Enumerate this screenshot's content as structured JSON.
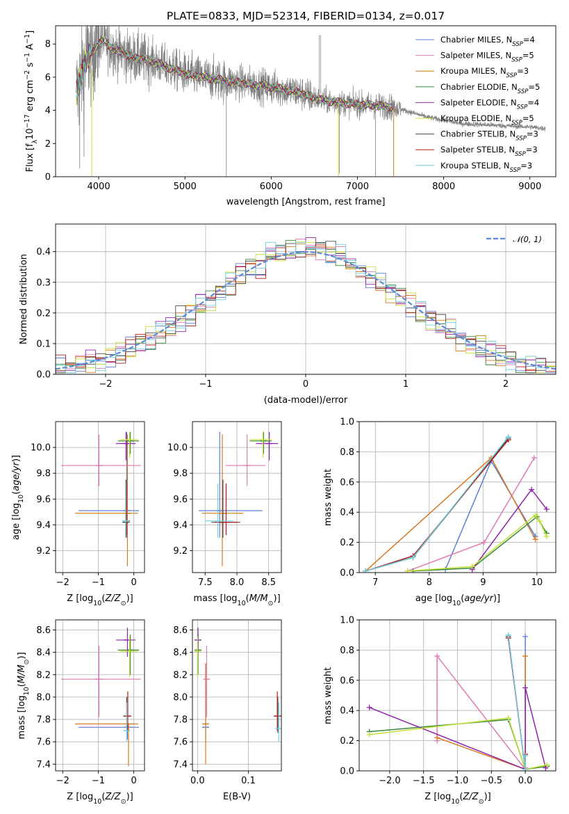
{
  "figure_title": "PLATE=0833, MJD=52314, FIBERID=0134, z=0.017",
  "colors": {
    "Chabrier MILES": "#5b7fd6",
    "Salpeter MILES": "#e07ab4",
    "Kroupa MILES": "#d9781e",
    "Chabrier ELODIE": "#3a8a3a",
    "Salpeter ELODIE": "#8e24aa",
    "Kroupa ELODIE": "#c6e03a",
    "Chabrier STELIB": "#4a4a4a",
    "Salpeter STELIB": "#b01a1a",
    "Kroupa STELIB": "#6ed0e0",
    "observed": "#808080",
    "normal": "#5b8bd6"
  },
  "legend_spectrum": [
    {
      "key": "Chabrier MILES",
      "label": "Chabrier MILES, N",
      "n": "=4"
    },
    {
      "key": "Salpeter MILES",
      "label": "Salpeter MILES, N",
      "n": "=5"
    },
    {
      "key": "Kroupa MILES",
      "label": "Kroupa MILES, N",
      "n": "=3"
    },
    {
      "key": "Chabrier ELODIE",
      "label": "Chabrier ELODIE, N",
      "n": "=5"
    },
    {
      "key": "Salpeter ELODIE",
      "label": "Salpeter ELODIE, N",
      "n": "=4"
    },
    {
      "key": "Kroupa ELODIE",
      "label": "Kroupa ELODIE, N",
      "n": "=5"
    },
    {
      "key": "Chabrier STELIB",
      "label": "Chabrier STELIB, N",
      "n": "=3"
    },
    {
      "key": "Salpeter STELIB",
      "label": "Salpeter STELIB, N",
      "n": "=3"
    },
    {
      "key": "Kroupa STELIB",
      "label": "Kroupa STELIB, N",
      "n": "=3"
    }
  ],
  "legend_ssp_subscript": "SSP",
  "chart_data": [
    {
      "id": "spectrum",
      "type": "line",
      "xlabel": "wavelength [Angstrom, rest frame]",
      "ylabel": "Flux [f_λ10^-17 erg cm^-2 s^-1 A^-1]",
      "xlim": [
        3500,
        9300
      ],
      "ylim": [
        0,
        9.1
      ],
      "xticks": [
        4000,
        5000,
        6000,
        7000,
        8000,
        9000
      ],
      "yticks": [
        0,
        2,
        4,
        6,
        8
      ],
      "grid": false,
      "legend": "top-right",
      "observed_range": [
        3740,
        9180
      ],
      "continuum": [
        [
          3740,
          5.0
        ],
        [
          3850,
          7.0
        ],
        [
          3950,
          7.8
        ],
        [
          4050,
          8.2
        ],
        [
          4200,
          7.6
        ],
        [
          4400,
          7.2
        ],
        [
          4600,
          7.0
        ],
        [
          4800,
          6.6
        ],
        [
          5000,
          6.2
        ],
        [
          5300,
          5.9
        ],
        [
          5600,
          5.7
        ],
        [
          6000,
          5.4
        ],
        [
          6300,
          5.1
        ],
        [
          6600,
          4.6
        ],
        [
          6900,
          4.4
        ],
        [
          7200,
          4.3
        ],
        [
          7420,
          4.2
        ],
        [
          7800,
          3.6
        ],
        [
          8200,
          3.2
        ],
        [
          8600,
          3.1
        ],
        [
          9000,
          3.0
        ],
        [
          9180,
          2.9
        ]
      ],
      "model_end": 7420
    },
    {
      "id": "residuals",
      "type": "histogram",
      "xlabel": "(data-model)/error",
      "ylabel": "Normed distribution",
      "xlim": [
        -2.5,
        2.5
      ],
      "ylim": [
        0,
        0.49
      ],
      "xticks": [
        -2,
        -1,
        0,
        1,
        2
      ],
      "yticks": [
        0.0,
        0.1,
        0.2,
        0.3,
        0.4
      ],
      "grid": true,
      "legend": "top-right",
      "legend_label": "𝒩(0, 1)",
      "bin_width": 0.1
    },
    {
      "id": "age_vs_Z",
      "type": "errorbar",
      "xlabel": "Z [log10(Z/Z⊙)]",
      "ylabel": "age [log10(age/yr)]",
      "xlim": [
        -2.2,
        0.3
      ],
      "ylim": [
        9.03,
        10.2
      ],
      "xticks": [
        -2,
        -1,
        0
      ],
      "yticks": [
        9.2,
        9.4,
        9.6,
        9.8,
        10.0
      ],
      "grid": true,
      "points": [
        {
          "key": "Chabrier MILES",
          "x": -0.2,
          "y": 9.51,
          "xe": [
            -1.55,
            0.15
          ],
          "ye": [
            9.3,
            10.12
          ]
        },
        {
          "key": "Salpeter MILES",
          "x": -0.98,
          "y": 9.86,
          "xe": [
            -2.05,
            0.2
          ],
          "ye": [
            9.7,
            10.1
          ]
        },
        {
          "key": "Kroupa MILES",
          "x": -0.18,
          "y": 9.49,
          "xe": [
            -1.65,
            0.12
          ],
          "ye": [
            9.08,
            10.1
          ]
        },
        {
          "key": "Chabrier ELODIE",
          "x": -0.1,
          "y": 10.05,
          "xe": [
            -0.45,
            0.15
          ],
          "ye": [
            9.95,
            10.12
          ]
        },
        {
          "key": "Salpeter ELODIE",
          "x": -0.22,
          "y": 10.03,
          "xe": [
            -0.5,
            0.05
          ],
          "ye": [
            9.9,
            10.12
          ]
        },
        {
          "key": "Kroupa ELODIE",
          "x": -0.12,
          "y": 10.06,
          "xe": [
            -0.4,
            0.12
          ],
          "ye": [
            9.92,
            10.12
          ]
        },
        {
          "key": "Chabrier STELIB",
          "x": -0.22,
          "y": 9.42,
          "xe": [
            -0.3,
            -0.15
          ],
          "ye": [
            9.3,
            9.75
          ]
        },
        {
          "key": "Salpeter STELIB",
          "x": -0.21,
          "y": 9.43,
          "xe": [
            -0.28,
            -0.15
          ],
          "ye": [
            9.32,
            9.72
          ]
        },
        {
          "key": "Kroupa STELIB",
          "x": -0.23,
          "y": 9.43,
          "xe": [
            -0.3,
            -0.16
          ],
          "ye": [
            9.3,
            9.72
          ]
        }
      ]
    },
    {
      "id": "age_vs_mass",
      "type": "errorbar",
      "xlabel": "mass [log10(M/M⊙)]",
      "ylabel": "",
      "xlim": [
        7.3,
        8.7
      ],
      "ylim": [
        9.03,
        10.2
      ],
      "xticks": [
        7.5,
        8.0,
        8.5
      ],
      "yticks": [
        9.2,
        9.4,
        9.6,
        9.8,
        10.0
      ],
      "grid": true,
      "points": [
        {
          "key": "Chabrier MILES",
          "x": 7.73,
          "y": 9.51,
          "xe": [
            7.4,
            8.4
          ],
          "ye": [
            9.3,
            10.12
          ]
        },
        {
          "key": "Salpeter MILES",
          "x": 8.16,
          "y": 9.86,
          "xe": [
            7.82,
            8.45
          ],
          "ye": [
            9.7,
            10.1
          ]
        },
        {
          "key": "Kroupa MILES",
          "x": 7.77,
          "y": 9.49,
          "xe": [
            7.45,
            8.1
          ],
          "ye": [
            9.08,
            10.1
          ]
        },
        {
          "key": "Chabrier ELODIE",
          "x": 8.42,
          "y": 10.05,
          "xe": [
            8.2,
            8.55
          ],
          "ye": [
            9.95,
            10.12
          ]
        },
        {
          "key": "Salpeter ELODIE",
          "x": 8.51,
          "y": 10.03,
          "xe": [
            8.3,
            8.65
          ],
          "ye": [
            9.9,
            10.12
          ]
        },
        {
          "key": "Kroupa ELODIE",
          "x": 8.41,
          "y": 10.06,
          "xe": [
            8.2,
            8.55
          ],
          "ye": [
            9.92,
            10.12
          ]
        },
        {
          "key": "Chabrier STELIB",
          "x": 7.78,
          "y": 9.42,
          "xe": [
            7.6,
            8.0
          ],
          "ye": [
            9.3,
            9.75
          ]
        },
        {
          "key": "Salpeter STELIB",
          "x": 7.83,
          "y": 9.42,
          "xe": [
            7.65,
            8.05
          ],
          "ye": [
            9.32,
            9.72
          ]
        },
        {
          "key": "Kroupa STELIB",
          "x": 7.7,
          "y": 9.43,
          "xe": [
            7.5,
            7.95
          ],
          "ye": [
            9.3,
            9.72
          ]
        }
      ]
    },
    {
      "id": "weight_vs_age",
      "type": "line",
      "xlabel": "age [log10(age/yr)]",
      "ylabel": "mass weight",
      "xlim": [
        6.7,
        10.35
      ],
      "ylim": [
        0,
        1.0
      ],
      "xticks": [
        7,
        8,
        9,
        10
      ],
      "yticks": [
        0.0,
        0.2,
        0.4,
        0.6,
        0.8,
        1.0
      ],
      "grid": true,
      "series": [
        {
          "key": "Chabrier MILES",
          "x": [
            7.6,
            8.3,
            9.15,
            9.97
          ],
          "y": [
            0.01,
            0.02,
            0.74,
            0.24
          ]
        },
        {
          "key": "Salpeter MILES",
          "x": [
            7.6,
            9.02,
            9.95
          ],
          "y": [
            0.01,
            0.2,
            0.76
          ]
        },
        {
          "key": "Kroupa MILES",
          "x": [
            6.82,
            9.15,
            9.97
          ],
          "y": [
            0.01,
            0.76,
            0.22
          ]
        },
        {
          "key": "Chabrier ELODIE",
          "x": [
            7.7,
            8.8,
            10.0,
            10.18
          ],
          "y": [
            0.01,
            0.03,
            0.37,
            0.26
          ]
        },
        {
          "key": "Salpeter ELODIE",
          "x": [
            8.8,
            9.9,
            10.18
          ],
          "y": [
            0.02,
            0.55,
            0.42
          ]
        },
        {
          "key": "Kroupa ELODIE",
          "x": [
            7.6,
            8.8,
            9.97,
            10.05,
            10.18
          ],
          "y": [
            0.01,
            0.04,
            0.38,
            0.34,
            0.24
          ]
        },
        {
          "key": "Chabrier STELIB",
          "x": [
            6.82,
            7.7,
            9.47
          ],
          "y": [
            0.01,
            0.1,
            0.89
          ]
        },
        {
          "key": "Salpeter STELIB",
          "x": [
            6.82,
            7.7,
            9.47
          ],
          "y": [
            0.01,
            0.11,
            0.88
          ]
        },
        {
          "key": "Kroupa STELIB",
          "x": [
            6.82,
            7.7,
            9.47
          ],
          "y": [
            0.01,
            0.1,
            0.9
          ]
        }
      ]
    },
    {
      "id": "mass_vs_Z",
      "type": "errorbar",
      "xlabel": "Z [log10(Z/Z⊙)]",
      "ylabel": "mass [log10(M/M⊙)]",
      "xlim": [
        -2.2,
        0.3
      ],
      "ylim": [
        7.34,
        8.69
      ],
      "xticks": [
        -2,
        -1,
        0
      ],
      "yticks": [
        7.4,
        7.6,
        7.8,
        8.0,
        8.2,
        8.4,
        8.6
      ],
      "grid": true,
      "points": [
        {
          "key": "Chabrier MILES",
          "x": -0.18,
          "y": 7.73,
          "xe": [
            -1.55,
            0.15
          ],
          "ye": [
            7.62,
            7.75
          ]
        },
        {
          "key": "Salpeter MILES",
          "x": -0.98,
          "y": 8.16,
          "xe": [
            -2.05,
            0.2
          ],
          "ye": [
            7.82,
            8.46
          ]
        },
        {
          "key": "Kroupa MILES",
          "x": -0.15,
          "y": 7.76,
          "xe": [
            -1.65,
            0.12
          ],
          "ye": [
            7.38,
            7.76
          ]
        },
        {
          "key": "Chabrier ELODIE",
          "x": -0.1,
          "y": 8.42,
          "xe": [
            -0.45,
            0.15
          ],
          "ye": [
            8.2,
            8.56
          ]
        },
        {
          "key": "Salpeter ELODIE",
          "x": -0.18,
          "y": 8.51,
          "xe": [
            -0.5,
            0.05
          ],
          "ye": [
            8.36,
            8.62
          ]
        },
        {
          "key": "Kroupa ELODIE",
          "x": -0.12,
          "y": 8.41,
          "xe": [
            -0.4,
            0.12
          ],
          "ye": [
            8.18,
            8.54
          ]
        },
        {
          "key": "Chabrier STELIB",
          "x": -0.2,
          "y": 7.83,
          "xe": [
            -0.28,
            -0.12
          ],
          "ye": [
            7.68,
            8.0
          ]
        },
        {
          "key": "Salpeter STELIB",
          "x": -0.17,
          "y": 7.83,
          "xe": [
            -0.25,
            -0.1
          ],
          "ye": [
            7.7,
            8.05
          ]
        },
        {
          "key": "Kroupa STELIB",
          "x": -0.2,
          "y": 7.7,
          "xe": [
            -0.28,
            -0.12
          ],
          "ye": [
            7.6,
            7.95
          ]
        }
      ]
    },
    {
      "id": "mass_vs_EBV",
      "type": "errorbar",
      "xlabel": "E(B-V)",
      "ylabel": "",
      "xlim": [
        -0.01,
        0.165
      ],
      "ylim": [
        7.34,
        8.69
      ],
      "xticks": [
        0.0,
        0.1
      ],
      "yticks": [
        7.4,
        7.6,
        7.8,
        8.0,
        8.2,
        8.4,
        8.6
      ],
      "grid": true,
      "points": [
        {
          "key": "Chabrier MILES",
          "x": 0.016,
          "y": 7.73,
          "ye": [
            7.62,
            8.3
          ]
        },
        {
          "key": "Salpeter MILES",
          "x": 0.018,
          "y": 8.16,
          "ye": [
            7.82,
            8.46
          ]
        },
        {
          "key": "Kroupa MILES",
          "x": 0.016,
          "y": 7.76,
          "ye": [
            7.4,
            8.3
          ]
        },
        {
          "key": "Chabrier ELODIE",
          "x": 0.001,
          "y": 8.42,
          "ye": [
            8.2,
            8.56
          ]
        },
        {
          "key": "Salpeter ELODIE",
          "x": 0.001,
          "y": 8.51,
          "ye": [
            8.4,
            8.62
          ]
        },
        {
          "key": "Kroupa ELODIE",
          "x": 0.0,
          "y": 8.41,
          "ye": [
            8.18,
            8.54
          ]
        },
        {
          "key": "Chabrier STELIB",
          "x": 0.158,
          "y": 7.83,
          "ye": [
            7.68,
            8.0
          ]
        },
        {
          "key": "Salpeter STELIB",
          "x": 0.157,
          "y": 7.83,
          "ye": [
            7.7,
            8.05
          ]
        },
        {
          "key": "Kroupa STELIB",
          "x": 0.16,
          "y": 7.72,
          "ye": [
            7.6,
            7.95
          ]
        }
      ]
    },
    {
      "id": "weight_vs_Z",
      "type": "line",
      "xlabel": "Z [log10(Z/Z⊙)]",
      "ylabel": "mass weight",
      "xlim": [
        -2.45,
        0.45
      ],
      "ylim": [
        0,
        1.0
      ],
      "xticks": [
        -2.0,
        -1.5,
        -1.0,
        -0.5,
        0.0
      ],
      "yticks": [
        0.0,
        0.2,
        0.4,
        0.6,
        0.8,
        1.0
      ],
      "grid": true,
      "series": [
        {
          "key": "Chabrier MILES",
          "x": [
            0.0,
            0.0,
            0.0
          ],
          "y": [
            0.01,
            0.1,
            0.89
          ]
        },
        {
          "key": "Salpeter MILES",
          "x": [
            -1.3,
            -1.3,
            0.0,
            0.0
          ],
          "y": [
            0.2,
            0.76,
            0.01,
            0.02
          ]
        },
        {
          "key": "Kroupa MILES",
          "x": [
            -1.3,
            0.0,
            0.0
          ],
          "y": [
            0.22,
            0.01,
            0.76
          ]
        },
        {
          "key": "Chabrier ELODIE",
          "x": [
            -2.3,
            -0.25,
            0.0,
            0.32
          ],
          "y": [
            0.26,
            0.34,
            0.01,
            0.03
          ]
        },
        {
          "key": "Salpeter ELODIE",
          "x": [
            -2.3,
            0.0,
            0.0,
            0.3
          ],
          "y": [
            0.42,
            0.01,
            0.55,
            0.02
          ]
        },
        {
          "key": "Kroupa ELODIE",
          "x": [
            -2.3,
            -0.25,
            0.0,
            0.32
          ],
          "y": [
            0.24,
            0.35,
            0.01,
            0.04
          ]
        },
        {
          "key": "Chabrier STELIB",
          "x": [
            -0.25,
            0.0,
            0.0
          ],
          "y": [
            0.89,
            0.01,
            0.1
          ]
        },
        {
          "key": "Salpeter STELIB",
          "x": [
            -0.25,
            0.0,
            0.0
          ],
          "y": [
            0.88,
            0.01,
            0.11
          ]
        },
        {
          "key": "Kroupa STELIB",
          "x": [
            -0.25,
            0.0,
            0.0
          ],
          "y": [
            0.9,
            0.01,
            0.1
          ]
        }
      ]
    }
  ]
}
